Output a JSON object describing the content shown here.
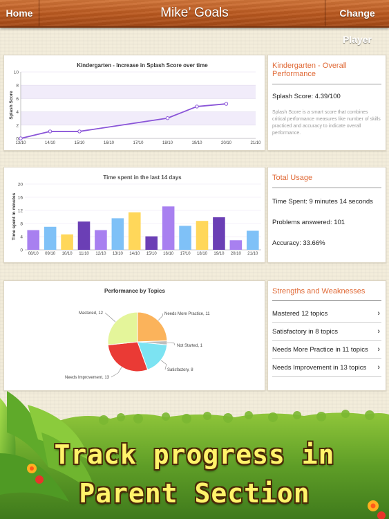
{
  "topbar": {
    "home_label": "Home",
    "title": "Mike’ Goals",
    "change_label": "Change Player"
  },
  "panels": {
    "overall": {
      "title": "Kindergarten - Overall Performance",
      "score_text": "Splash Score: 4.39/100",
      "note": "Splash Score is a smart score that combines critical performance measures like number of skills practiced and accuracy to indicate overall performance."
    },
    "usage": {
      "title": "Total Usage",
      "time_spent": "Time Spent: 9 minutes 14 seconds",
      "problems": "Problems answered: 101",
      "accuracy": "Accuracy: 33.66%"
    },
    "strengths": {
      "title": "Strengths and Weaknesses",
      "items": [
        {
          "label": "Mastered 12 topics"
        },
        {
          "label": "Satisfactory in 8 topics"
        },
        {
          "label": "Needs More Practice in 11 topics"
        },
        {
          "label": "Needs Improvement in 13 topics"
        }
      ]
    }
  },
  "promo": {
    "line1": "Track progress in",
    "line2": "Parent Section"
  },
  "chart_data": [
    {
      "type": "line",
      "title": "Kindergarten - Increase in Splash Score over time",
      "ylabel": "Splash Score",
      "xlabel": "",
      "categories": [
        "13/10",
        "14/10",
        "15/10",
        "16/10",
        "17/10",
        "18/10",
        "19/10",
        "20/10",
        "21/10"
      ],
      "yticks": [
        0,
        2,
        4,
        6,
        8,
        10
      ],
      "ylim": [
        0,
        10
      ],
      "color": "#8a55d8",
      "points": [
        [
          0,
          0
        ],
        [
          1,
          1.05
        ],
        [
          2,
          1.05
        ],
        [
          5,
          3.05
        ],
        [
          6,
          4.8
        ],
        [
          7,
          5.2
        ]
      ]
    },
    {
      "type": "bar",
      "title": "Time spent in the last 14 days",
      "ylabel": "Time spent in minutes",
      "xlabel": "",
      "categories": [
        "08/10",
        "09/10",
        "10/10",
        "11/10",
        "12/10",
        "13/10",
        "14/10",
        "15/10",
        "16/10",
        "17/10",
        "18/10",
        "19/10",
        "20/10",
        "21/10"
      ],
      "values": [
        6,
        7,
        4.7,
        8.6,
        6,
        9.6,
        11.4,
        4.1,
        13.2,
        7.3,
        8.8,
        9.9,
        2.9,
        5.8
      ],
      "colors": [
        "#a880f0",
        "#7fc1f7",
        "#ffd75a",
        "#6b3fb5",
        "#a880f0",
        "#7fc1f7",
        "#ffd75a",
        "#6b3fb5",
        "#a880f0",
        "#7fc1f7",
        "#ffd75a",
        "#6b3fb5",
        "#a880f0",
        "#7fc1f7"
      ],
      "yticks": [
        0,
        4,
        8,
        12,
        16,
        20
      ],
      "ylim": [
        0,
        20
      ]
    },
    {
      "type": "pie",
      "title": "Performance by Topics",
      "slices": [
        {
          "label": "Needs More Practice, 11",
          "value": 11,
          "color": "#fbb35b"
        },
        {
          "label": "Not Started, 1",
          "value": 1,
          "color": "#bdbdbd"
        },
        {
          "label": "Satisfactory, 8",
          "value": 8,
          "color": "#7ce3f2"
        },
        {
          "label": "Needs Improvement, 13",
          "value": 13,
          "color": "#ea3a35"
        },
        {
          "label": "Mastered, 12",
          "value": 12,
          "color": "#e4f59a"
        }
      ]
    }
  ]
}
